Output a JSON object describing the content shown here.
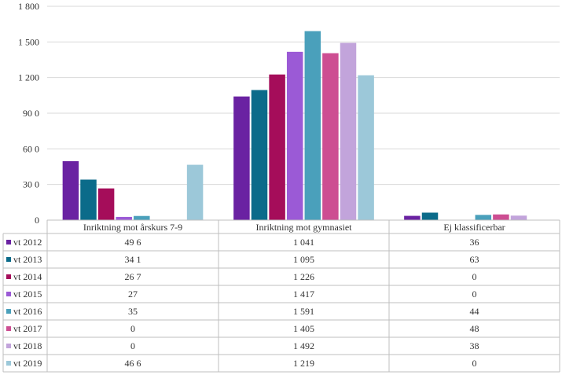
{
  "chart_data": {
    "type": "bar",
    "categories": [
      "Inriktning mot årskurs 7-9",
      "Inriktning mot gymnasiet",
      "Ej klassificerbar"
    ],
    "series": [
      {
        "name": "vt 2012",
        "color": "#6a22a2",
        "values": [
          496,
          1041,
          36
        ]
      },
      {
        "name": "vt 2013",
        "color": "#0b6b8a",
        "values": [
          341,
          1095,
          63
        ]
      },
      {
        "name": "vt 2014",
        "color": "#a50d5a",
        "values": [
          267,
          1226,
          0
        ]
      },
      {
        "name": "vt 2015",
        "color": "#9b5ad6",
        "values": [
          27,
          1417,
          0
        ]
      },
      {
        "name": "vt 2016",
        "color": "#4aa0bb",
        "values": [
          35,
          1591,
          44
        ]
      },
      {
        "name": "vt 2017",
        "color": "#cd4e92",
        "values": [
          0,
          1405,
          48
        ]
      },
      {
        "name": "vt 2018",
        "color": "#c2a4db",
        "values": [
          0,
          1492,
          38
        ]
      },
      {
        "name": "vt 2019",
        "color": "#9cc8d9",
        "values": [
          466,
          1219,
          0
        ]
      }
    ],
    "ylim": [
      0,
      1800
    ],
    "yticks": [
      0,
      300,
      600,
      900,
      1200,
      1500,
      1800
    ],
    "ytick_labels": [
      "0",
      "30 0",
      "60 0",
      "90 0",
      "1 200",
      "1 500",
      "1 800"
    ],
    "table_labels": [
      [
        "49 6",
        "1 041",
        "36"
      ],
      [
        "34 1",
        "1 095",
        "63"
      ],
      [
        "26 7",
        "1 226",
        "0"
      ],
      [
        "27",
        "1 417",
        "0"
      ],
      [
        "35",
        "1 591",
        "44"
      ],
      [
        "0",
        "1 405",
        "48"
      ],
      [
        "0",
        "1 492",
        "38"
      ],
      [
        "46 6",
        "1 219",
        "0"
      ]
    ],
    "grid": true,
    "legend": "table-left",
    "title": "",
    "xlabel": "",
    "ylabel": ""
  }
}
